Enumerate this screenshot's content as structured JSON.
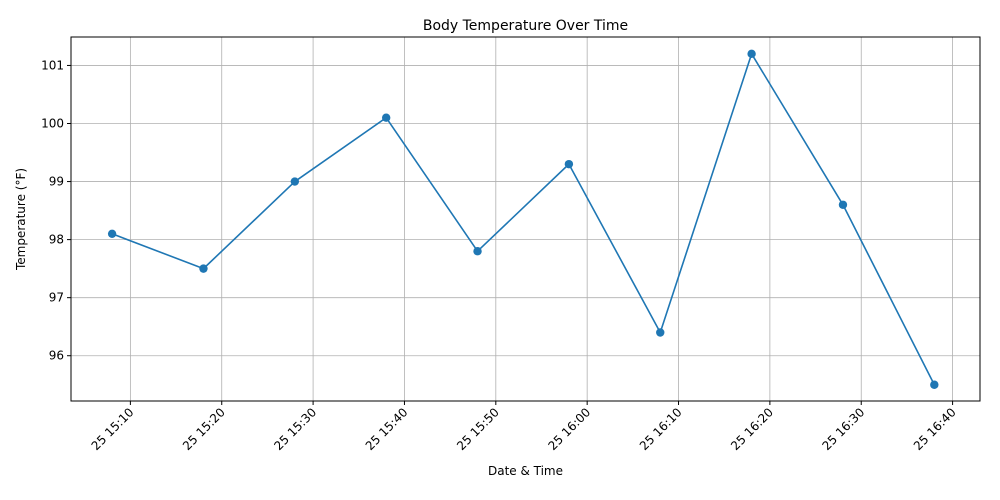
{
  "chart_data": {
    "type": "line",
    "title": "Body Temperature Over Time",
    "xlabel": "Date & Time",
    "ylabel": "Temperature (°F)",
    "x": [
      "15:08",
      "15:18",
      "15:28",
      "15:38",
      "15:48",
      "15:58",
      "16:08",
      "16:18",
      "16:28",
      "16:38"
    ],
    "series": [
      {
        "values": [
          98.1,
          97.5,
          99.0,
          100.1,
          97.8,
          99.3,
          96.4,
          101.2,
          98.6,
          95.5
        ]
      }
    ],
    "xlim": [
      "15:03.5",
      "16:43"
    ],
    "ylim": [
      95.22,
      101.49
    ],
    "x_ticks": [
      "15:10",
      "15:20",
      "15:30",
      "15:40",
      "15:50",
      "16:00",
      "16:10",
      "16:20",
      "16:30",
      "16:40"
    ],
    "x_tick_labels": [
      "25 15:10",
      "25 15:20",
      "25 15:30",
      "25 15:40",
      "25 15:50",
      "25 16:00",
      "25 16:10",
      "25 16:20",
      "25 16:30",
      "25 16:40"
    ],
    "y_ticks": [
      96,
      97,
      98,
      99,
      100,
      101
    ],
    "grid": true,
    "line_color": "#1f77b4",
    "marker": "circle"
  }
}
